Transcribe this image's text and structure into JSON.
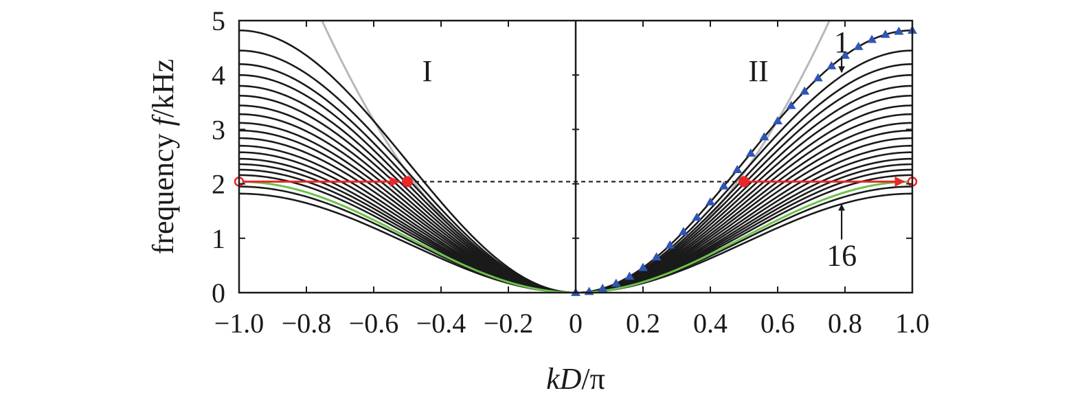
{
  "chart_data": {
    "type": "line",
    "xlabel": "kD/π",
    "xlabel_parts": {
      "k": "k",
      "D": "D",
      "pi": "/π"
    },
    "ylabel": "frequency f/kHz",
    "ylabel_parts": {
      "word": "frequency ",
      "f": "f",
      "unit": "/kHz"
    },
    "xlim": [
      -1.0,
      1.0
    ],
    "ylim": [
      0,
      5
    ],
    "x_ticks": [
      -1.0,
      -0.8,
      -0.6,
      -0.4,
      -0.2,
      0,
      0.2,
      0.4,
      0.6,
      0.8,
      1.0
    ],
    "x_tick_labels": [
      "−1.0",
      "−0.8",
      "−0.6",
      "−0.4",
      "−0.2",
      "0",
      "0.2",
      "0.4",
      "0.6",
      "0.8",
      "1.0"
    ],
    "y_ticks": [
      0,
      1,
      2,
      3,
      4,
      5
    ],
    "y_tick_labels": [
      "0",
      "1",
      "2",
      "3",
      "4",
      "5"
    ],
    "grid": false,
    "regions": [
      {
        "label": "I",
        "side": "left"
      },
      {
        "label": "II",
        "side": "right"
      }
    ],
    "mode_labels": [
      {
        "label": "1",
        "x": 0.79,
        "y": 4.62,
        "arrow_to": [
          0.79,
          4.05
        ]
      },
      {
        "label": "16",
        "x": 0.79,
        "y": 0.7,
        "arrow_to": [
          0.79,
          1.62
        ]
      }
    ],
    "black_band_max_frequencies_kHz": [
      4.82,
      4.45,
      4.2,
      4.0,
      3.8,
      3.62,
      3.44,
      3.28,
      3.12,
      2.98,
      2.84,
      2.7,
      2.58,
      2.46,
      2.36,
      2.26,
      2.16,
      1.95,
      1.82
    ],
    "green_band_max_frequency_kHz": 2.04,
    "color_black": "#1a1a1a",
    "color_green": "#6cc24a",
    "color_gray": "#b8b8b8",
    "color_red": "#e8272a",
    "color_blue": "#2f56b4",
    "gray_parabola": {
      "coefficient_kHz": 8.8,
      "note_formula": "f = a·(kD/π)²"
    },
    "triangles_follow_mode": 1,
    "triangle_x": [
      0,
      0.04,
      0.08,
      0.12,
      0.16,
      0.2,
      0.24,
      0.28,
      0.32,
      0.36,
      0.4,
      0.44,
      0.48,
      0.52,
      0.56,
      0.6,
      0.64,
      0.68,
      0.72,
      0.76,
      0.8,
      0.84,
      0.88,
      0.92,
      0.96,
      1.0
    ],
    "frequency_line_kHz": 2.04,
    "red_points_filled": [
      [
        -0.5,
        2.04
      ],
      [
        0.5,
        2.04
      ]
    ],
    "red_points_open": [
      [
        -1.0,
        2.04
      ],
      [
        1.0,
        2.04
      ]
    ],
    "red_arrows": [
      {
        "from": [
          -1.0,
          2.04
        ],
        "to": [
          -0.5,
          2.04
        ]
      },
      {
        "from": [
          0.5,
          2.04
        ],
        "to": [
          1.0,
          2.04
        ]
      }
    ]
  }
}
